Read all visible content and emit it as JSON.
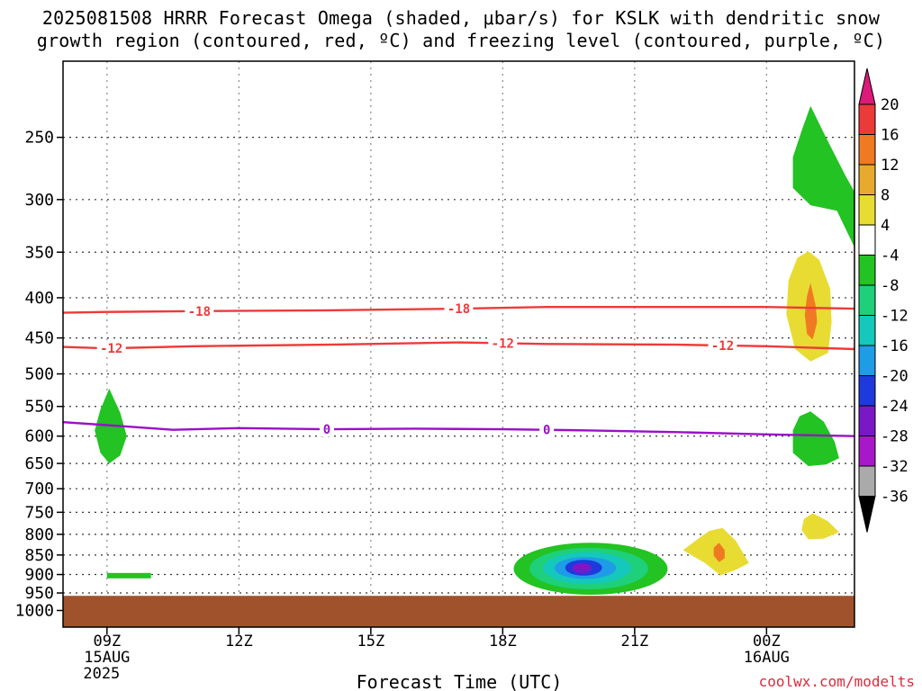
{
  "header": {
    "title_line1": "2025081508 HRRR Forecast Omega (shaded, μbar/s) for KSLK with dendritic snow",
    "title_line2": "growth region (contoured, red, ºC) and freezing level (contoured, purple, ºC)"
  },
  "footer": {
    "xlabel": "Forecast Time (UTC)",
    "credit": "coolwx.com/modelts"
  },
  "chart_data": {
    "type": "contour",
    "title": "2025081508 HRRR Forecast Omega (shaded, μbar/s) for KSLK with dendritic snow growth region (contoured, red, ºC) and freezing level (contoured, purple, ºC)",
    "xlabel": "Forecast Time (UTC)",
    "ylabel": "",
    "y_scale": "log",
    "y_inverted": true,
    "xlim_hours_utc": [
      8.0,
      26.0
    ],
    "ylim_hpa": [
      200,
      1050
    ],
    "y_ticks": [
      250,
      300,
      350,
      400,
      450,
      500,
      550,
      600,
      650,
      700,
      750,
      800,
      850,
      900,
      950,
      1000
    ],
    "x_ticks": [
      {
        "hour": 9,
        "label": "09Z",
        "label2": "15AUG",
        "label3": "2025"
      },
      {
        "hour": 12,
        "label": "12Z"
      },
      {
        "hour": 15,
        "label": "15Z"
      },
      {
        "hour": 18,
        "label": "18Z"
      },
      {
        "hour": 21,
        "label": "21Z"
      },
      {
        "hour": 24,
        "label": "00Z",
        "label2": "16AUG"
      }
    ],
    "grid": true,
    "colorbar": {
      "levels": [
        20,
        16,
        12,
        8,
        4,
        -4,
        -8,
        -12,
        -16,
        -20,
        -24,
        -28,
        -32,
        -36
      ],
      "colors": [
        "#dc1a79",
        "#ec3a3a",
        "#f07a22",
        "#e8aa2e",
        "#e8dc32",
        "#ffffff",
        "#22c322",
        "#1ed07a",
        "#14c8bc",
        "#1e9ce6",
        "#1e3adc",
        "#7a18c8",
        "#a818c8",
        "#aaaaaa",
        "#000000"
      ]
    },
    "surface_fill_color": "#a0522d",
    "series": [
      {
        "name": "-18",
        "color": "#ee3a3a",
        "x": [
          8.0,
          9.0,
          11.0,
          14.0,
          17.0,
          19.0,
          22.0,
          24.0,
          26.0
        ],
        "y": [
          418,
          417,
          416,
          415,
          413,
          411,
          411,
          411,
          413
        ]
      },
      {
        "name": "-12",
        "color": "#ee3a3a",
        "x": [
          8.0,
          9.0,
          11.0,
          14.0,
          17.0,
          19.0,
          22.0,
          24.0,
          26.0
        ],
        "y": [
          462,
          464,
          461,
          459,
          456,
          458,
          459,
          461,
          465
        ]
      },
      {
        "name": "0",
        "color": "#9a10c8",
        "x": [
          8.0,
          9.0,
          10.5,
          12.0,
          14.0,
          16.0,
          18.0,
          20.0,
          22.0,
          24.0,
          26.0
        ],
        "y": [
          576,
          581,
          589,
          586,
          588,
          587,
          588,
          590,
          593,
          597,
          600
        ]
      }
    ],
    "omega_features": [
      {
        "value_range": [
          -8,
          -4
        ],
        "x_center": 9.1,
        "p_center": 580,
        "x_halfwidth": 0.35,
        "p_range": [
          522,
          650
        ]
      },
      {
        "value_range": [
          -8,
          -4
        ],
        "x_range": [
          9.0,
          10.0
        ],
        "p": 903
      },
      {
        "value_range": [
          -8,
          -4
        ],
        "x_center": 24.9,
        "p_range": [
          230,
          345
        ]
      },
      {
        "value_range": [
          4,
          8
        ],
        "x_center": 25.0,
        "p_range": [
          350,
          480
        ]
      },
      {
        "value_range": [
          12,
          16
        ],
        "x_center": 25.0,
        "p_range": [
          383,
          450
        ]
      },
      {
        "value_range": [
          -8,
          -4
        ],
        "x_center": 25.0,
        "p_range": [
          560,
          650
        ]
      },
      {
        "value_range": [
          4,
          8
        ],
        "x_center": 25.2,
        "p_range": [
          765,
          815
        ]
      },
      {
        "value_range": [
          4,
          8
        ],
        "x_center": 22.9,
        "p_range": [
          800,
          905
        ]
      },
      {
        "value_range": [
          12,
          16
        ],
        "x_center": 22.9,
        "p_range": [
          820,
          870
        ]
      },
      {
        "value_range": [
          -32,
          -4
        ],
        "x_center": 19.9,
        "p_center": 890,
        "x_range": [
          18.3,
          21.7
        ],
        "p_range": [
          820,
          955
        ],
        "min_value": -32
      }
    ]
  }
}
